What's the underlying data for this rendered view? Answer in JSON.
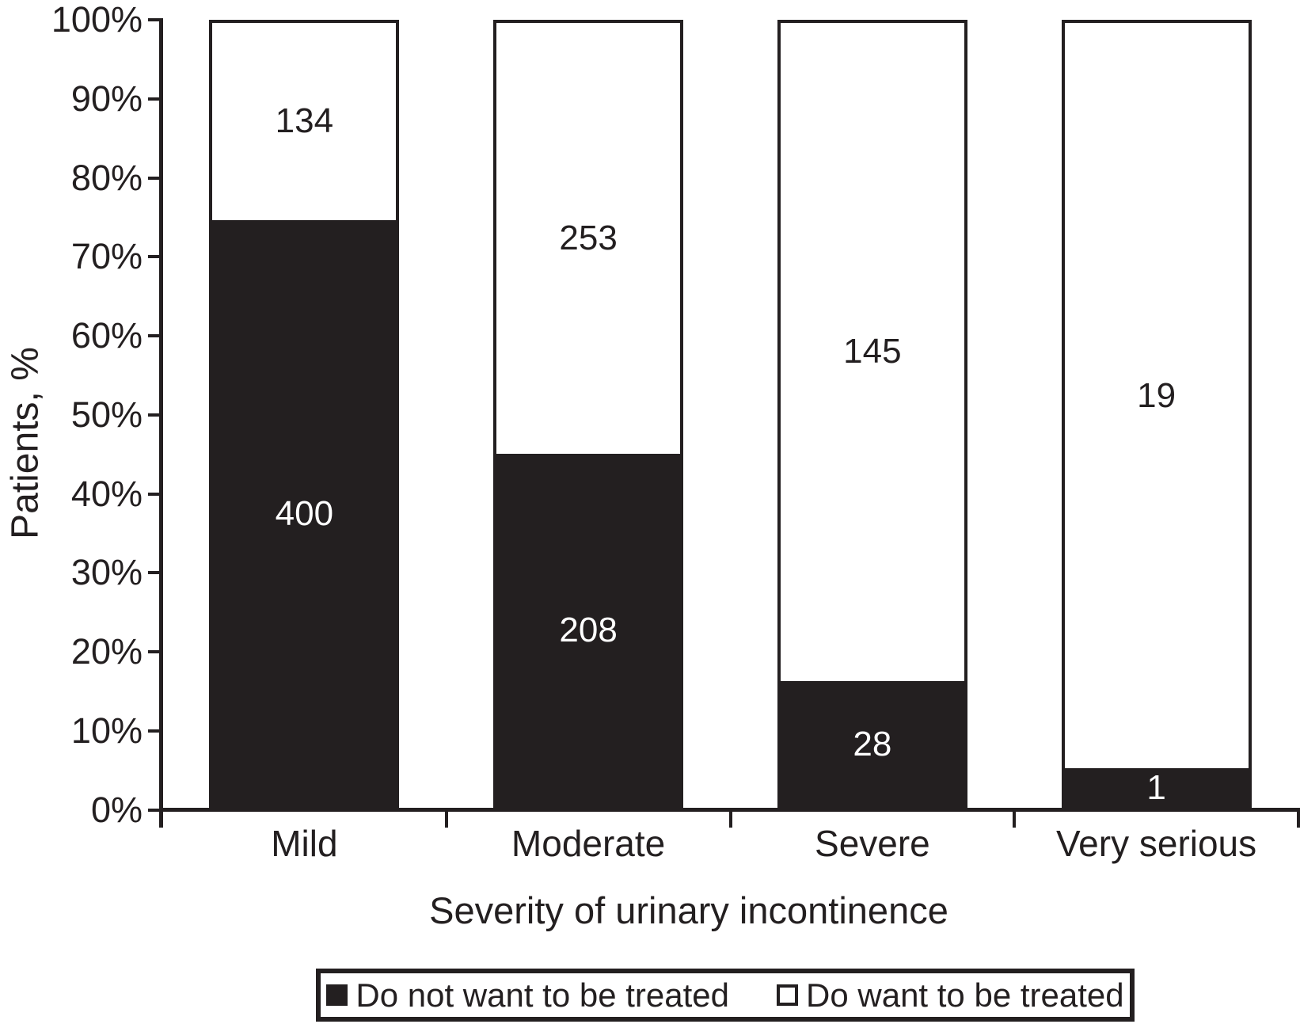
{
  "colors": {
    "ink": "#231f20",
    "paper": "#ffffff"
  },
  "chart_data": {
    "type": "bar",
    "variant": "stacked-100-percent",
    "title": "",
    "xlabel": "Severity of urinary incontinence",
    "ylabel": "Patients, %",
    "ylim": [
      0,
      100
    ],
    "grid": false,
    "legend_position": "bottom",
    "categories": [
      "Mild",
      "Moderate",
      "Severe",
      "Very serious"
    ],
    "series": [
      {
        "name": "Do not want to be treated",
        "color": "#231f20",
        "values": [
          400,
          208,
          28,
          1
        ]
      },
      {
        "name": "Do want to be treated",
        "color": "#ffffff",
        "values": [
          134,
          253,
          145,
          19
        ]
      }
    ],
    "segment_percent_black": [
      74.9,
      45.1,
      16.2,
      5.0
    ],
    "y_tick_labels": [
      "0%",
      "10%",
      "20%",
      "30%",
      "40%",
      "50%",
      "60%",
      "70%",
      "80%",
      "90%",
      "100%"
    ]
  }
}
